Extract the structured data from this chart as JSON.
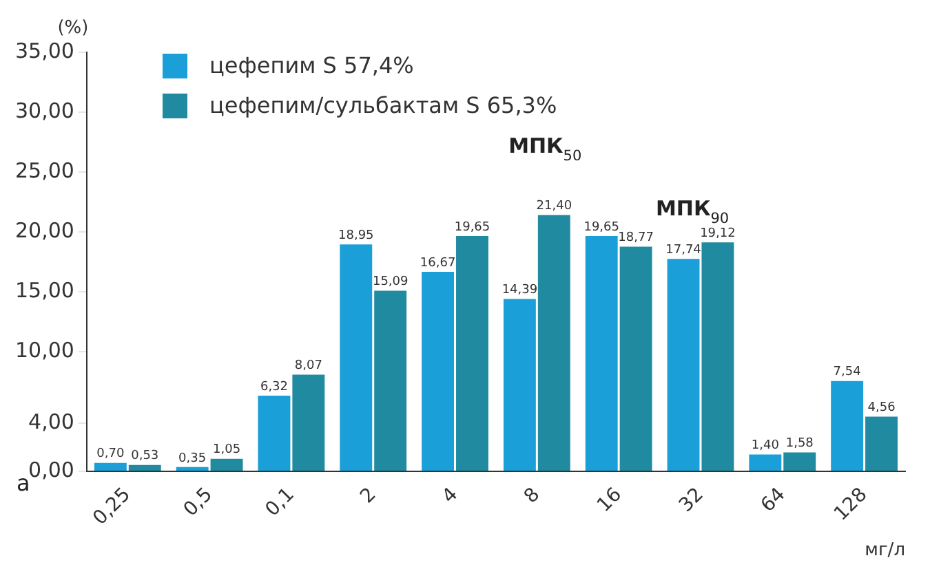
{
  "chart_data": {
    "type": "bar",
    "ylabel": "(%)",
    "xlabel": "мг/л",
    "categories": [
      "0,25",
      "0,5",
      "0,1",
      "2",
      "4",
      "8",
      "16",
      "32",
      "64",
      "128"
    ],
    "series": [
      {
        "name": "цефепим S 57,4%",
        "color": "#1a9fd8",
        "values": [
          0.7,
          0.35,
          6.32,
          18.95,
          16.67,
          14.39,
          19.65,
          17.74,
          1.4,
          7.54
        ],
        "value_labels": [
          "0,70",
          "0,35",
          "6,32",
          "18,95",
          "16,67",
          "14,39",
          "19,65",
          "17,74",
          "1,40",
          "7,54"
        ]
      },
      {
        "name": "цефепим/сульбактам S 65,3%",
        "color": "#1f8aa0",
        "values": [
          0.53,
          1.05,
          8.07,
          15.09,
          19.65,
          21.4,
          18.77,
          19.12,
          1.58,
          4.56
        ],
        "value_labels": [
          "0,53",
          "1,05",
          "8,07",
          "15,09",
          "19,65",
          "21,40",
          "18,77",
          "19,12",
          "1,58",
          "4,56"
        ]
      }
    ],
    "ylim": [
      0,
      35
    ],
    "yticks": [
      {
        "value": 0,
        "label": "0,00"
      },
      {
        "value": 4,
        "label": "4,00"
      },
      {
        "value": 10,
        "label": "10,00"
      },
      {
        "value": 15,
        "label": "15,00"
      },
      {
        "value": 20,
        "label": "20,00"
      },
      {
        "value": 25,
        "label": "25,00"
      },
      {
        "value": 30,
        "label": "30,00"
      },
      {
        "value": 35,
        "label": "35,00"
      }
    ],
    "grid": false,
    "legend": "top left",
    "annotations": [
      "МПК$_{50}$",
      "МПК$_{90}$",
      "а"
    ]
  }
}
